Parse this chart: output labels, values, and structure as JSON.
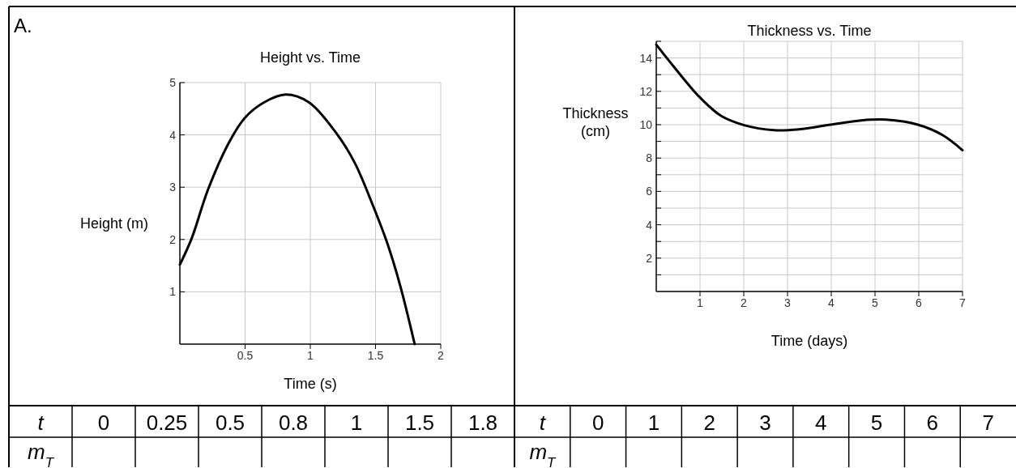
{
  "chart_data": [
    {
      "type": "line",
      "title": "Height vs. Time",
      "xlabel": "Time (s)",
      "ylabel": "Height (m)",
      "x": [
        0,
        0.092,
        0.215,
        0.38,
        0.5,
        0.645,
        0.81,
        0.99,
        1.2,
        1.34,
        1.48,
        1.59,
        1.69,
        1.8
      ],
      "series": [
        {
          "color": "#000000",
          "values": [
            1.52,
            2.03,
            2.95,
            3.87,
            4.33,
            4.62,
            4.77,
            4.62,
            4.03,
            3.47,
            2.65,
            1.93,
            1.11,
            0
          ]
        }
      ],
      "xlim": [
        0,
        2
      ],
      "ylim": [
        0,
        5
      ],
      "xticks": [
        0.5,
        1,
        1.5,
        2
      ],
      "yticks": [
        1,
        2,
        3,
        4,
        5
      ],
      "grid": true,
      "marker": "none",
      "line_style": "solid",
      "annotations": [
        "A.",
        "t",
        "0",
        "0.25",
        "0.5",
        "0.8",
        "1",
        "1.5",
        "1.8",
        "m$_{T}$"
      ]
    },
    {
      "type": "line",
      "title": "Thickness  vs. Time",
      "xlabel": "Time (days)",
      "ylabel": "Thickness (cm)",
      "x": [
        0,
        0.41,
        0.98,
        1.48,
        2.01,
        2.69,
        3.26,
        3.98,
        4.69,
        5.26,
        5.98,
        6.55,
        7
      ],
      "series": [
        {
          "color": "#000000",
          "values": [
            14.8,
            13.45,
            11.68,
            10.53,
            9.97,
            9.67,
            9.72,
            10.0,
            10.26,
            10.3,
            10.0,
            9.37,
            8.47
          ]
        }
      ],
      "xlim": [
        0,
        7
      ],
      "ylim": [
        0,
        15
      ],
      "xticks": [
        1,
        2,
        3,
        4,
        5,
        6,
        7
      ],
      "yticks": [
        {
          "value": 1,
          "label": null
        },
        2,
        {
          "value": 3,
          "label": null
        },
        4,
        {
          "value": 5,
          "label": null
        },
        6,
        {
          "value": 7,
          "label": null
        },
        8,
        {
          "value": 9,
          "label": null
        },
        10,
        {
          "value": 11,
          "label": null
        },
        12,
        {
          "value": 13,
          "label": null
        },
        14,
        {
          "value": 15,
          "label": null
        }
      ],
      "grid": true,
      "marker": "none",
      "line_style": "solid",
      "annotations": [
        "t",
        "0",
        "1",
        "2",
        "3",
        "4",
        "5",
        "6",
        "7",
        "m$_{T}$"
      ]
    }
  ]
}
